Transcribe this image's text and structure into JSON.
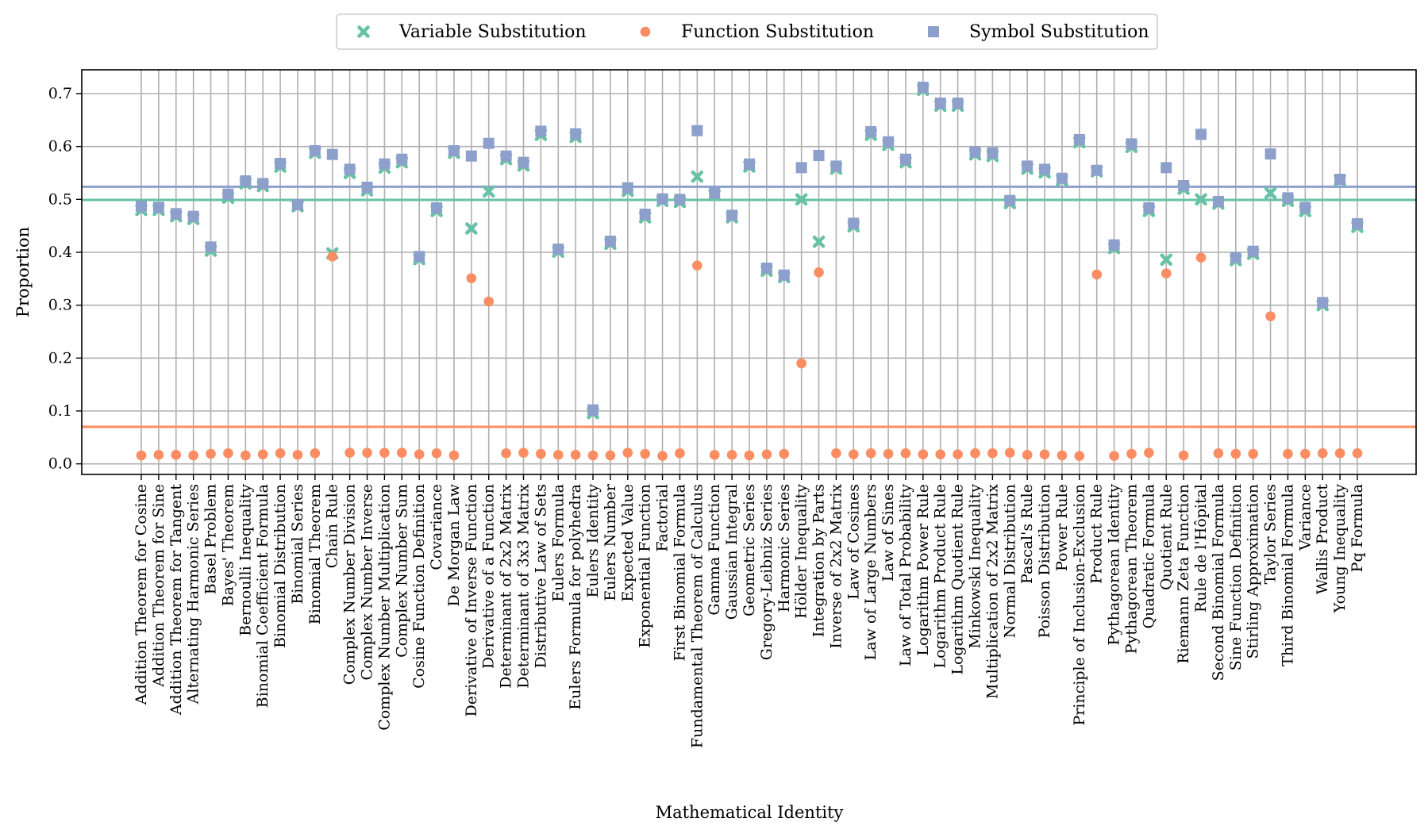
{
  "chart_data": {
    "type": "scatter",
    "title": "",
    "xlabel": "Mathematical Identity",
    "ylabel": "Proportion",
    "ylim": [
      -0.02,
      0.745
    ],
    "yticks": [
      0.0,
      0.1,
      0.2,
      0.3,
      0.4,
      0.5,
      0.6,
      0.7
    ],
    "grid": true,
    "legend_position": "top-center",
    "categories": [
      "Addition Theorem for Cosine",
      "Addition Theorem for Sine",
      "Addition Theorem for Tangent",
      "Alternating Harmonic Series",
      "Basel Problem",
      "Bayes' Theorem",
      "Bernoulli Inequality",
      "Binomial Coefficient Formula",
      "Binomial Distribution",
      "Binomial Series",
      "Binomial Theorem",
      "Chain Rule",
      "Complex Number Division",
      "Complex Number Inverse",
      "Complex Number Multiplication",
      "Complex Number Sum",
      "Cosine Function Definition",
      "Covariance",
      "De Morgan Law",
      "Derivative of Inverse Function",
      "Derivative of a Function",
      "Determinant of 2x2 Matrix",
      "Determinant of 3x3 Matrix",
      "Distributive Law of Sets",
      "Eulers Formula",
      "Eulers Formula for polyhedra",
      "Eulers Identity",
      "Eulers Number",
      "Expected Value",
      "Exponential Function",
      "Factorial",
      "First Binomial Formula",
      "Fundamental Theorem of Calculus",
      "Gamma Function",
      "Gaussian Integral",
      "Geometric Series",
      "Gregory-Leibniz Series",
      "Harmonic Series",
      "Hölder Inequality",
      "Integration by Parts",
      "Inverse of 2x2 Matrix",
      "Law of Cosines",
      "Law of Large Numbers",
      "Law of Sines",
      "Law of Total Probability",
      "Logarithm Power Rule",
      "Logarithm Product Rule",
      "Logarithm Quotient Rule",
      "Minkowski Inequality",
      "Multiplication of 2x2 Matrix",
      "Normal Distribution",
      "Pascal's Rule",
      "Poisson Distribution",
      "Power Rule",
      "Principle of Inclusion-Exclusion",
      "Product Rule",
      "Pythagorean Identity",
      "Pythagorean Theorem",
      "Quadratic Formula",
      "Quotient Rule",
      "Riemann Zeta Function",
      "Rule de l'Hôpital",
      "Second Binomial Formula",
      "Sine Function Definition",
      "Stirling Approximation",
      "Taylor Series",
      "Third Binomial Formula",
      "Variance",
      "Wallis Product",
      "Young Inequality",
      "Pq Formula"
    ],
    "series": [
      {
        "name": "Variable Substitution",
        "marker": "x",
        "color": "#66c2a5",
        "values": [
          0.48,
          0.48,
          0.468,
          0.463,
          0.403,
          0.503,
          0.53,
          0.525,
          0.562,
          0.487,
          0.588,
          0.398,
          0.55,
          0.517,
          0.56,
          0.57,
          0.387,
          0.478,
          0.588,
          0.445,
          0.515,
          0.576,
          0.564,
          0.622,
          0.401,
          0.618,
          0.096,
          0.416,
          0.516,
          0.466,
          0.497,
          0.495,
          0.543,
          0.508,
          0.466,
          0.562,
          0.365,
          0.353,
          0.5,
          0.42,
          0.558,
          0.449,
          0.622,
          0.603,
          0.57,
          0.707,
          0.677,
          0.677,
          0.585,
          0.582,
          0.493,
          0.558,
          0.551,
          0.536,
          0.608,
          0.553,
          0.408,
          0.599,
          0.478,
          0.386,
          0.52,
          0.5,
          0.492,
          0.385,
          0.397,
          0.512,
          0.497,
          0.478,
          0.3,
          0.536,
          0.448
        ]
      },
      {
        "name": "Function Substitution",
        "marker": "o",
        "color": "#fc8d62",
        "values": [
          0.016,
          0.017,
          0.017,
          0.016,
          0.019,
          0.02,
          0.016,
          0.018,
          0.02,
          0.017,
          0.02,
          0.392,
          0.021,
          0.021,
          0.021,
          0.021,
          0.018,
          0.02,
          0.016,
          0.351,
          0.307,
          0.02,
          0.021,
          0.019,
          0.017,
          0.017,
          0.016,
          0.016,
          0.021,
          0.019,
          0.015,
          0.02,
          0.375,
          0.017,
          0.017,
          0.016,
          0.018,
          0.019,
          0.19,
          0.362,
          0.02,
          0.018,
          0.02,
          0.019,
          0.02,
          0.018,
          0.018,
          0.018,
          0.02,
          0.02,
          0.021,
          0.017,
          0.018,
          0.016,
          0.015,
          0.358,
          0.015,
          0.019,
          0.021,
          0.36,
          0.016,
          0.39,
          0.02,
          0.019,
          0.019,
          0.279,
          0.019,
          0.019,
          0.02,
          0.02,
          0.02
        ]
      },
      {
        "name": "Symbol Substitution",
        "marker": "s",
        "color": "#8da0cb",
        "values": [
          0.487,
          0.485,
          0.473,
          0.468,
          0.41,
          0.51,
          0.535,
          0.53,
          0.568,
          0.49,
          0.592,
          0.585,
          0.557,
          0.523,
          0.567,
          0.576,
          0.392,
          0.484,
          0.592,
          0.582,
          0.606,
          0.582,
          0.57,
          0.629,
          0.406,
          0.624,
          0.102,
          0.421,
          0.522,
          0.472,
          0.501,
          0.5,
          0.63,
          0.512,
          0.47,
          0.567,
          0.37,
          0.357,
          0.56,
          0.583,
          0.563,
          0.455,
          0.628,
          0.609,
          0.576,
          0.712,
          0.682,
          0.682,
          0.59,
          0.588,
          0.498,
          0.563,
          0.557,
          0.54,
          0.613,
          0.555,
          0.414,
          0.605,
          0.484,
          0.56,
          0.526,
          0.623,
          0.496,
          0.39,
          0.402,
          0.586,
          0.503,
          0.485,
          0.305,
          0.538,
          0.454
        ]
      }
    ],
    "reference_lines": [
      {
        "series": "Symbol Substitution",
        "value": 0.524,
        "color": "#8da0cb"
      },
      {
        "series": "Variable Substitution",
        "value": 0.499,
        "color": "#66c2a5"
      },
      {
        "series": "Function Substitution",
        "value": 0.07,
        "color": "#fc8d62"
      }
    ]
  }
}
